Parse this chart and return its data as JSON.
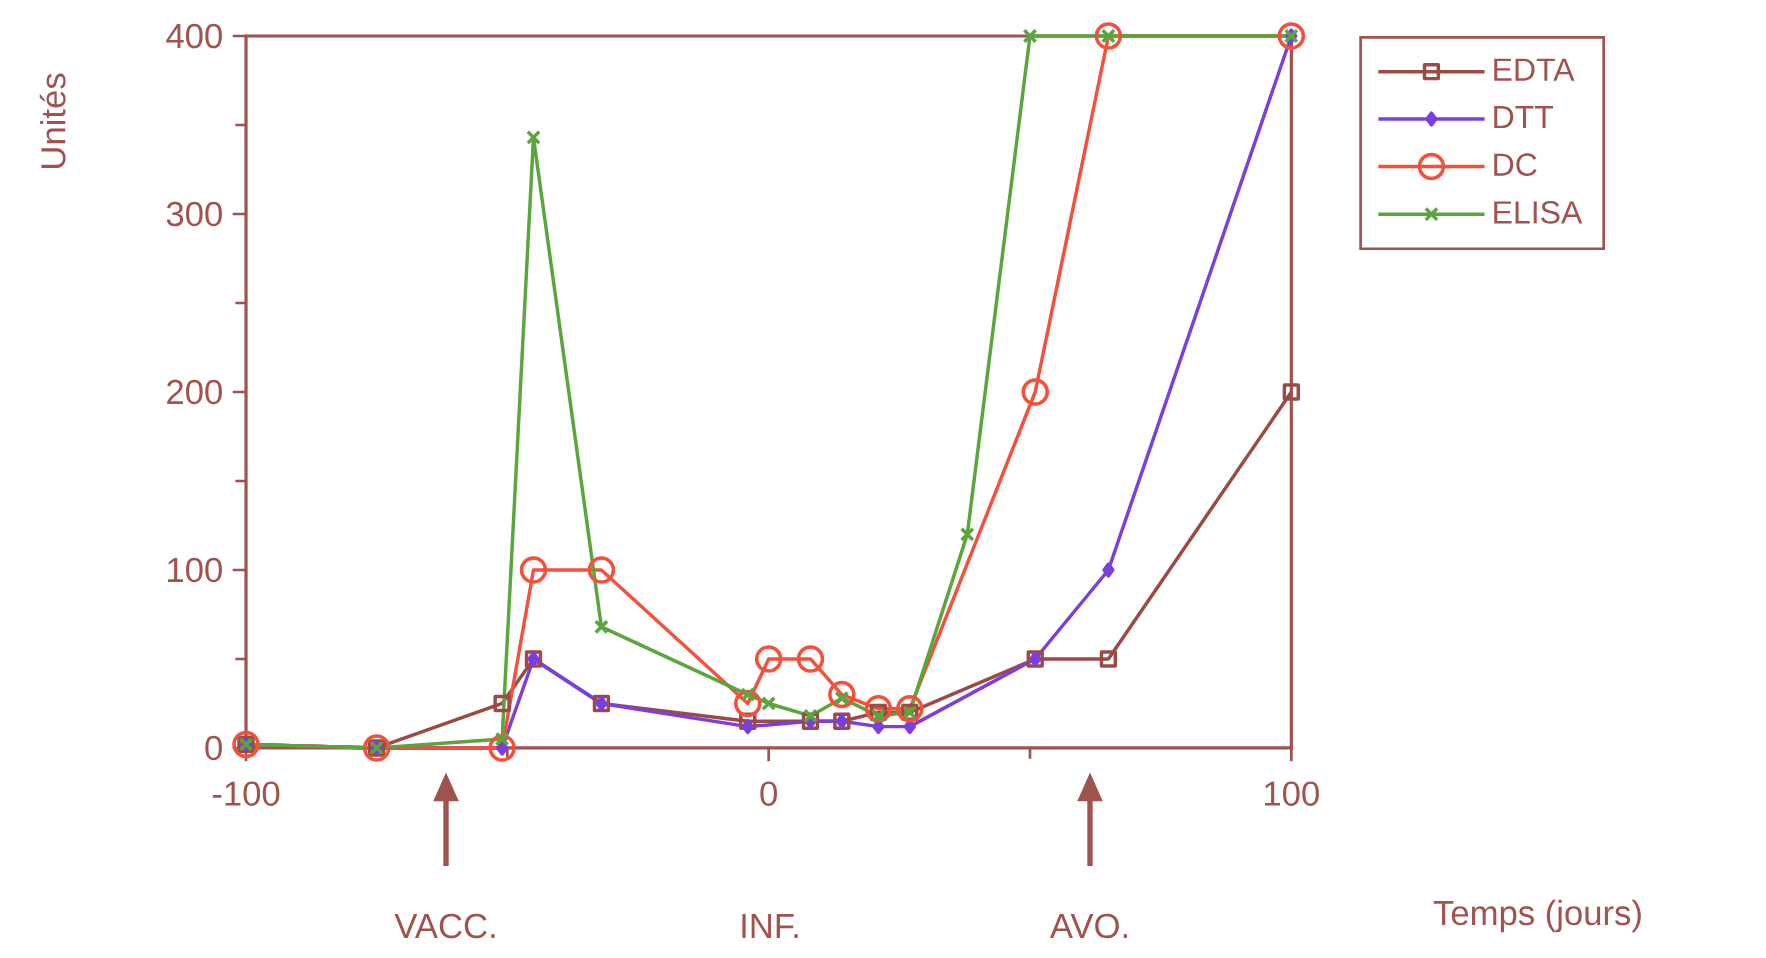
{
  "chart_data": {
    "type": "line",
    "xlabel": "Temps (jours)",
    "ylabel": "Unités",
    "xlim": [
      -100,
      100
    ],
    "xticks": [
      -100,
      0,
      100
    ],
    "ylim": [
      0,
      400
    ],
    "yticks": [
      0,
      100,
      200,
      300,
      400
    ],
    "grid": false,
    "legend": "right",
    "annotations": [
      "VACC.",
      "INF.",
      "AVO."
    ],
    "series": [
      {
        "name": "EDTA",
        "color": "#9b4a45",
        "marker": "square",
        "x": [
          -100,
          -75,
          -51,
          -45,
          -32,
          -4,
          8,
          14,
          21,
          27,
          51,
          65,
          100
        ],
        "values": [
          2,
          0,
          25,
          50,
          25,
          15,
          15,
          15,
          20,
          20,
          50,
          50,
          200
        ]
      },
      {
        "name": "DTT",
        "color": "#7b3fe0",
        "marker": "diamond",
        "x": [
          -100,
          -75,
          -51,
          -45,
          -32,
          -4,
          8,
          14,
          21,
          27,
          51,
          65,
          100
        ],
        "values": [
          2,
          0,
          0,
          50,
          25,
          12,
          15,
          15,
          12,
          12,
          50,
          100,
          400
        ]
      },
      {
        "name": "DC",
        "color": "#f5503c",
        "marker": "circle",
        "x": [
          -100,
          -75,
          -51,
          -45,
          -32,
          -4,
          0,
          8,
          14,
          21,
          27,
          51,
          65,
          100
        ],
        "values": [
          2,
          0,
          0,
          100,
          100,
          25,
          50,
          50,
          30,
          22,
          22,
          200,
          400,
          400
        ]
      },
      {
        "name": "ELISA",
        "color": "#5aa53c",
        "marker": "cross",
        "x": [
          -100,
          -75,
          -51,
          -45,
          -32,
          -4,
          0,
          8,
          14,
          21,
          27,
          38,
          50,
          65,
          100
        ],
        "values": [
          2,
          0,
          5,
          343,
          68,
          30,
          25,
          18,
          28,
          18,
          20,
          120,
          400,
          400,
          400
        ]
      }
    ]
  }
}
